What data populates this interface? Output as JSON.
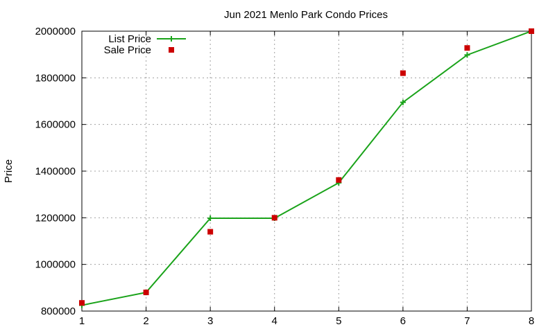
{
  "chart_data": {
    "type": "line",
    "title": "Jun 2021 Menlo Park Condo Prices",
    "xlabel": "",
    "ylabel": "Price",
    "xlim": [
      1,
      8
    ],
    "ylim": [
      800000,
      2000000
    ],
    "x_ticks": [
      1,
      2,
      3,
      4,
      5,
      6,
      7,
      8
    ],
    "y_ticks": [
      800000,
      1000000,
      1200000,
      1400000,
      1600000,
      1800000,
      2000000
    ],
    "grid": true,
    "legend_position": "top-left",
    "x": [
      1,
      2,
      3,
      4,
      5,
      6,
      7,
      8
    ],
    "series": [
      {
        "name": "List Price",
        "style": "linespoints",
        "marker": "plus",
        "color": "#1aa31a",
        "values": [
          825000,
          880000,
          1198000,
          1198000,
          1350000,
          1695000,
          1898000,
          2000000
        ]
      },
      {
        "name": "Sale Price",
        "style": "points",
        "marker": "square",
        "color": "#cc0000",
        "values": [
          835000,
          880000,
          1140000,
          1200000,
          1362000,
          1820000,
          1928000,
          2000000
        ]
      }
    ]
  }
}
